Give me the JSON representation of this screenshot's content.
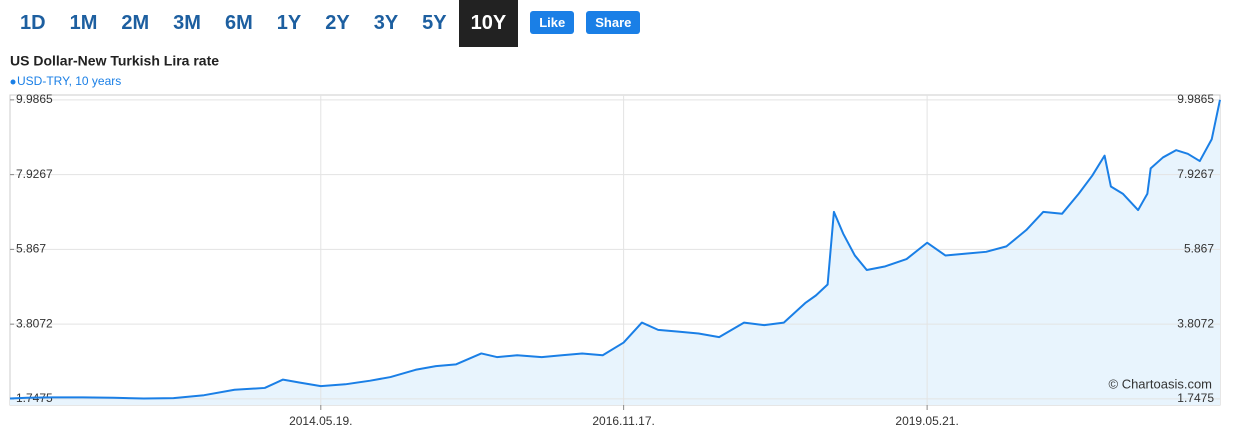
{
  "toolbar": {
    "ranges": [
      "1D",
      "1M",
      "2M",
      "3M",
      "6M",
      "1Y",
      "2Y",
      "3Y",
      "5Y",
      "10Y"
    ],
    "active": "10Y",
    "like": "Like",
    "share": "Share"
  },
  "chart_data": {
    "type": "line",
    "title": "US Dollar-New Turkish Lira rate",
    "credit": "© Chartoasis.com",
    "x": [
      "2011.10.25.",
      "2011.12.15.",
      "2012.03.01.",
      "2012.06.01.",
      "2012.09.01.",
      "2012.12.01.",
      "2013.03.01.",
      "2013.06.01.",
      "2013.09.01.",
      "2013.12.01.",
      "2014.01.25.",
      "2014.03.15.",
      "2014.05.19.",
      "2014.08.01.",
      "2014.10.15.",
      "2014.12.15.",
      "2015.03.01.",
      "2015.05.01.",
      "2015.07.01.",
      "2015.09.15.",
      "2015.11.01.",
      "2016.01.01.",
      "2016.03.15.",
      "2016.05.15.",
      "2016.07.15.",
      "2016.09.15.",
      "2016.11.17.",
      "2017.01.11.",
      "2017.03.01.",
      "2017.05.01.",
      "2017.07.01.",
      "2017.09.01.",
      "2017.11.15.",
      "2018.01.15.",
      "2018.03.15.",
      "2018.05.20.",
      "2018.06.20.",
      "2018.07.25.",
      "2018.08.13.",
      "2018.09.10.",
      "2018.10.15.",
      "2018.11.20.",
      "2019.01.15.",
      "2019.03.20.",
      "2019.05.21.",
      "2019.07.15.",
      "2019.09.15.",
      "2019.11.15.",
      "2020.01.15.",
      "2020.03.15.",
      "2020.05.05.",
      "2020.07.01.",
      "2020.08.20.",
      "2020.09.30.",
      "2020.11.06.",
      "2020.11.25.",
      "2020.12.31.",
      "2021.02.15.",
      "2021.03.15.",
      "2021.03.25.",
      "2021.05.01.",
      "2021.06.10.",
      "2021.07.15.",
      "2021.08.20.",
      "2021.09.25.",
      "2021.10.20."
    ],
    "series": [
      {
        "name": "USD-TRY, 10 years",
        "color": "#1a7fe6",
        "values": [
          1.76,
          1.78,
          1.79,
          1.79,
          1.78,
          1.76,
          1.77,
          1.85,
          2.0,
          2.05,
          2.28,
          2.2,
          2.1,
          2.15,
          2.25,
          2.35,
          2.55,
          2.65,
          2.7,
          3.0,
          2.9,
          2.95,
          2.9,
          2.95,
          3.0,
          2.95,
          3.3,
          3.85,
          3.65,
          3.6,
          3.55,
          3.45,
          3.85,
          3.78,
          3.85,
          4.4,
          4.6,
          4.9,
          6.9,
          6.3,
          5.7,
          5.3,
          5.4,
          5.6,
          6.05,
          5.7,
          5.75,
          5.8,
          5.95,
          6.4,
          6.9,
          6.85,
          7.4,
          7.9,
          8.45,
          7.6,
          7.4,
          6.95,
          7.4,
          8.1,
          8.4,
          8.6,
          8.5,
          8.3,
          8.9,
          9.9865
        ]
      }
    ],
    "xlim": [
      "2011.10.25.",
      "2021.10.20."
    ],
    "xticks": [
      "2014.05.19.",
      "2016.11.17.",
      "2019.05.21."
    ],
    "ylim": [
      1.58,
      10.12
    ],
    "yticks": [
      1.7475,
      3.8072,
      5.867,
      7.9267,
      9.9865
    ],
    "grid": true,
    "area_color": "#e8f4fd"
  }
}
